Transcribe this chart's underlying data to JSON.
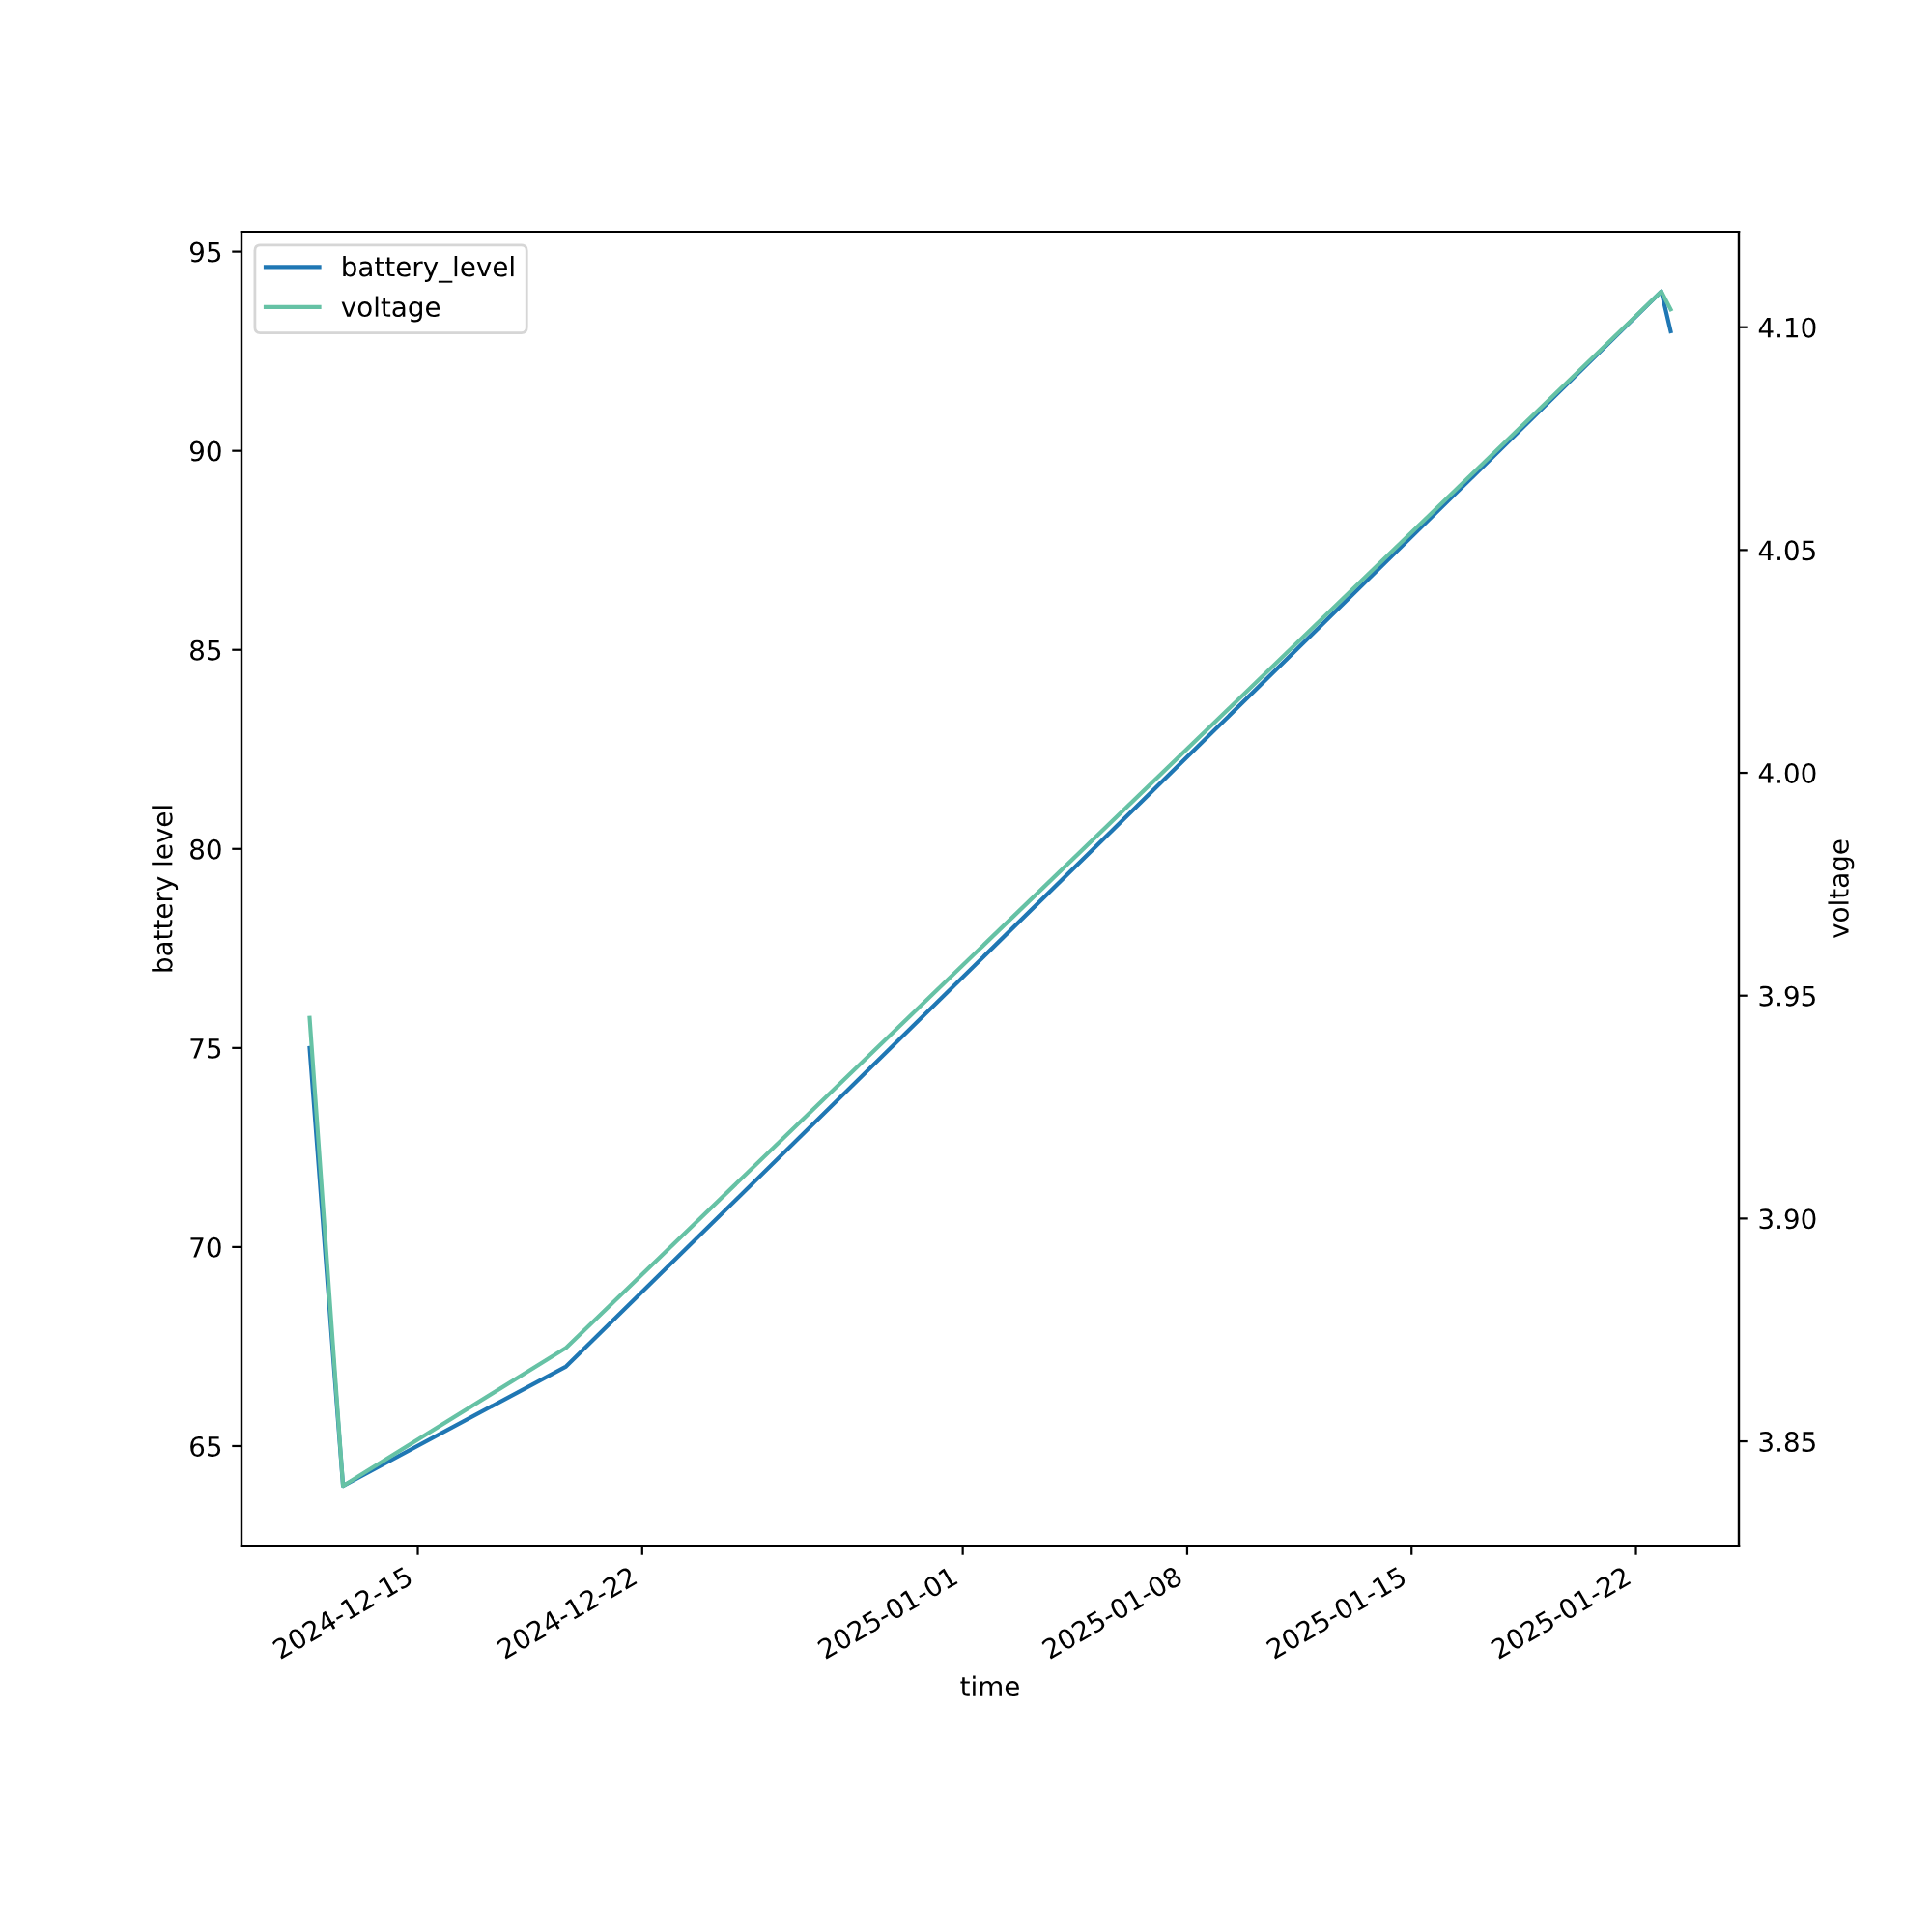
{
  "chart_data": {
    "type": "line",
    "xlabel": "time",
    "ylabel": "battery level",
    "y2label": "voltage",
    "x": [
      "2024-12-11T15:00",
      "2024-12-12T16:00",
      "2024-12-19T15:00",
      "2025-01-22T19:00",
      "2025-01-23T02:00"
    ],
    "series": [
      {
        "name": "battery_level",
        "color": "#1f77b4",
        "values": [
          75,
          64,
          67,
          94,
          93
        ]
      },
      {
        "name": "voltage",
        "color": "#66c2a5",
        "axis": "y2",
        "values": [
          3.945,
          3.84,
          3.871,
          4.108,
          4.104
        ]
      }
    ],
    "xlim": [
      "2024-12-09T12:00",
      "2025-01-25T05:00"
    ],
    "xticks": [
      "2024-12-15",
      "2024-12-22",
      "2025-01-01",
      "2025-01-08",
      "2025-01-15",
      "2025-01-22"
    ],
    "ylim": [
      62.5,
      95.5
    ],
    "yticks": [
      65,
      70,
      75,
      80,
      85,
      90,
      95
    ],
    "y2lim": [
      3.8266,
      4.1214
    ],
    "y2ticks": [
      {
        "value": 3.85,
        "label": "3.85"
      },
      {
        "value": 3.9,
        "label": "3.90"
      },
      {
        "value": 3.95,
        "label": "3.95"
      },
      {
        "value": 4.0,
        "label": "4.00"
      },
      {
        "value": 4.05,
        "label": "4.05"
      },
      {
        "value": 4.1,
        "label": "4.10"
      }
    ],
    "legend": "top left",
    "grid": false
  }
}
